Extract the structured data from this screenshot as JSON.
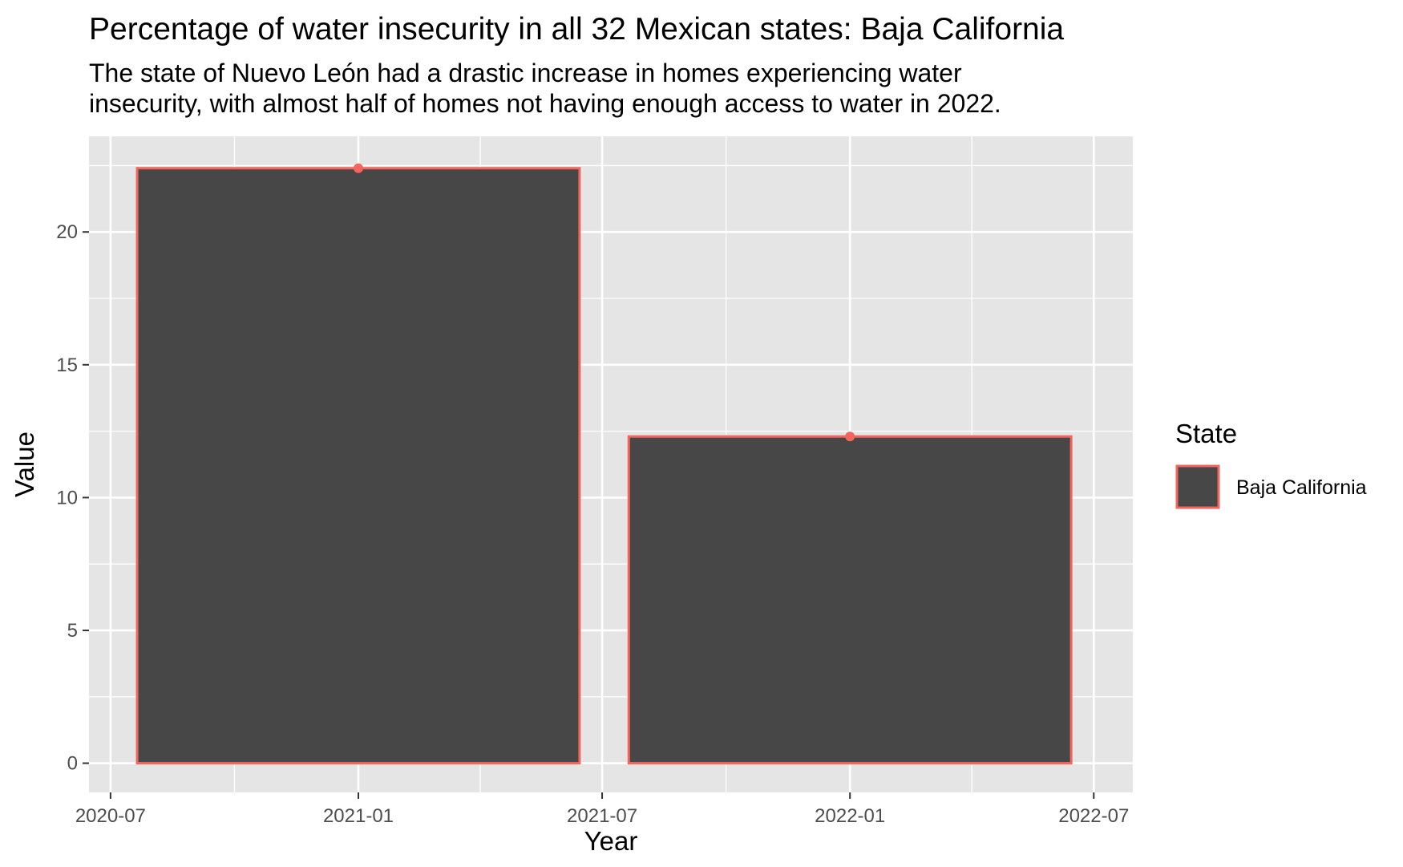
{
  "chart_data": {
    "type": "bar",
    "title": "Percentage of water insecurity in all 32 Mexican states: Baja California",
    "subtitle_lines": [
      "The state of Nuevo León had a drastic increase in homes experiencing water",
      "insecurity, with almost half of homes not having enough access to water in 2022."
    ],
    "xlabel": "Year",
    "ylabel": "Value",
    "x_ticks": [
      "2020-07",
      "2021-01",
      "2021-07",
      "2022-01",
      "2022-07"
    ],
    "y_ticks": [
      0,
      5,
      10,
      15,
      20
    ],
    "ylim": [
      -1.1,
      23.6
    ],
    "xlim": [
      "2020-06-15",
      "2022-07-30"
    ],
    "categories": [
      "2021-01-01",
      "2022-01-01"
    ],
    "series": [
      {
        "name": "Baja California",
        "values": [
          22.4,
          12.3
        ]
      }
    ],
    "legend": {
      "title": "State",
      "placement": "right",
      "entries": [
        "Baja California"
      ]
    },
    "grid": true,
    "colors": {
      "bar_fill": "#474747",
      "bar_outline": "#f2665e",
      "panel": "#e5e5e5",
      "grid": "#ffffff"
    }
  }
}
